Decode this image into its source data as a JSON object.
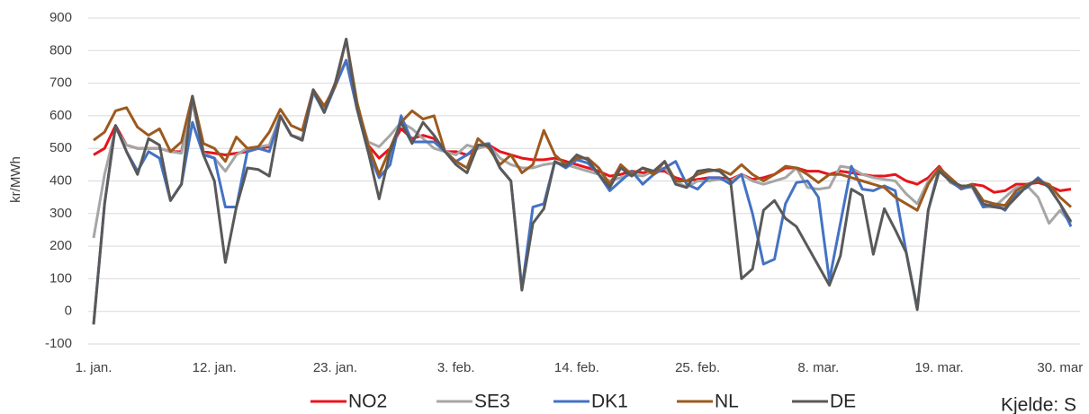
{
  "chart_data": {
    "type": "line",
    "y_label": "kr/MWh",
    "note": "Kjelde: S",
    "categories": [
      "1. jan.",
      null,
      null,
      null,
      null,
      null,
      null,
      null,
      null,
      null,
      null,
      "12. jan.",
      null,
      null,
      null,
      null,
      null,
      null,
      null,
      null,
      null,
      null,
      "23. jan.",
      null,
      null,
      null,
      null,
      null,
      null,
      null,
      null,
      null,
      null,
      "3. feb.",
      null,
      null,
      null,
      null,
      null,
      null,
      null,
      null,
      null,
      null,
      "14. feb.",
      null,
      null,
      null,
      null,
      null,
      null,
      null,
      null,
      null,
      null,
      "25. feb.",
      null,
      null,
      null,
      null,
      null,
      null,
      null,
      null,
      null,
      null,
      "8. mar.",
      null,
      null,
      null,
      null,
      null,
      null,
      null,
      null,
      null,
      null,
      "19. mar.",
      null,
      null,
      null,
      null,
      null,
      null,
      null,
      null,
      null,
      null,
      "30. mar",
      null
    ],
    "ylim": [
      -100,
      900
    ],
    "yticks": [
      -100,
      0,
      100,
      200,
      300,
      400,
      500,
      600,
      700,
      800,
      900
    ],
    "grid": true,
    "legend": "bottom",
    "series": [
      {
        "name": "NO2",
        "color": "#e8141c",
        "values": [
          480,
          500,
          570,
          510,
          500,
          500,
          500,
          490,
          490,
          650,
          490,
          485,
          480,
          485,
          490,
          500,
          505,
          600,
          540,
          530,
          670,
          620,
          700,
          770,
          620,
          510,
          470,
          500,
          560,
          530,
          540,
          530,
          490,
          490,
          480,
          500,
          510,
          490,
          480,
          470,
          465,
          465,
          470,
          460,
          450,
          440,
          430,
          415,
          420,
          430,
          425,
          430,
          430,
          410,
          400,
          405,
          410,
          410,
          405,
          420,
          405,
          410,
          420,
          440,
          440,
          430,
          430,
          420,
          430,
          425,
          420,
          415,
          415,
          420,
          400,
          390,
          410,
          445,
          400,
          380,
          390,
          385,
          365,
          370,
          390,
          390,
          395,
          385,
          370,
          375
        ]
      },
      {
        "name": "SE3",
        "color": "#a6a6a6",
        "values": [
          225,
          420,
          560,
          510,
          500,
          500,
          500,
          490,
          485,
          640,
          485,
          470,
          430,
          480,
          500,
          505,
          510,
          600,
          540,
          530,
          670,
          615,
          700,
          770,
          630,
          520,
          505,
          540,
          580,
          560,
          530,
          500,
          490,
          480,
          510,
          500,
          510,
          470,
          450,
          440,
          440,
          450,
          455,
          450,
          440,
          430,
          420,
          400,
          410,
          420,
          415,
          430,
          440,
          400,
          380,
          400,
          400,
          405,
          400,
          420,
          400,
          390,
          400,
          410,
          440,
          380,
          375,
          380,
          445,
          440,
          420,
          410,
          405,
          400,
          360,
          330,
          400,
          440,
          395,
          380,
          380,
          320,
          320,
          350,
          380,
          385,
          350,
          270,
          310,
          270
        ]
      },
      {
        "name": "DK1",
        "color": "#4472c4",
        "values": [
          -40,
          330,
          570,
          490,
          430,
          490,
          470,
          340,
          390,
          580,
          480,
          470,
          320,
          320,
          490,
          500,
          490,
          600,
          540,
          525,
          675,
          610,
          690,
          770,
          620,
          490,
          410,
          450,
          600,
          520,
          520,
          520,
          490,
          460,
          480,
          510,
          515,
          440,
          400,
          70,
          320,
          330,
          460,
          440,
          465,
          455,
          420,
          370,
          400,
          430,
          390,
          420,
          440,
          460,
          390,
          375,
          410,
          410,
          390,
          420,
          300,
          145,
          160,
          330,
          395,
          400,
          350,
          95,
          270,
          445,
          375,
          370,
          385,
          370,
          180,
          10,
          310,
          440,
          400,
          375,
          385,
          320,
          330,
          310,
          360,
          380,
          410,
          380,
          330,
          260
        ]
      },
      {
        "name": "NL",
        "color": "#9c5a1e",
        "values": [
          525,
          550,
          615,
          625,
          565,
          540,
          560,
          490,
          520,
          660,
          515,
          500,
          460,
          535,
          500,
          505,
          550,
          620,
          570,
          555,
          680,
          630,
          690,
          835,
          640,
          510,
          420,
          500,
          580,
          615,
          590,
          600,
          490,
          460,
          440,
          530,
          500,
          450,
          480,
          425,
          450,
          555,
          480,
          450,
          470,
          470,
          440,
          390,
          450,
          420,
          440,
          420,
          460,
          400,
          400,
          420,
          430,
          435,
          420,
          450,
          420,
          400,
          420,
          445,
          440,
          420,
          395,
          420,
          420,
          410,
          400,
          390,
          380,
          350,
          330,
          310,
          390,
          440,
          410,
          380,
          390,
          340,
          330,
          325,
          370,
          390,
          400,
          390,
          350,
          320
        ]
      },
      {
        "name": "DE",
        "color": "#595959",
        "values": [
          -40,
          330,
          570,
          490,
          420,
          530,
          510,
          340,
          390,
          660,
          480,
          400,
          150,
          320,
          440,
          435,
          415,
          600,
          540,
          525,
          680,
          610,
          700,
          835,
          620,
          490,
          345,
          490,
          580,
          515,
          580,
          540,
          490,
          450,
          425,
          510,
          510,
          440,
          400,
          65,
          270,
          315,
          460,
          445,
          480,
          465,
          420,
          380,
          440,
          415,
          440,
          430,
          460,
          390,
          380,
          430,
          435,
          430,
          400,
          100,
          130,
          310,
          340,
          285,
          260,
          200,
          140,
          80,
          170,
          375,
          355,
          175,
          315,
          250,
          180,
          5,
          310,
          430,
          400,
          385,
          385,
          330,
          320,
          315,
          350,
          385,
          405,
          380,
          330,
          275
        ]
      }
    ]
  }
}
